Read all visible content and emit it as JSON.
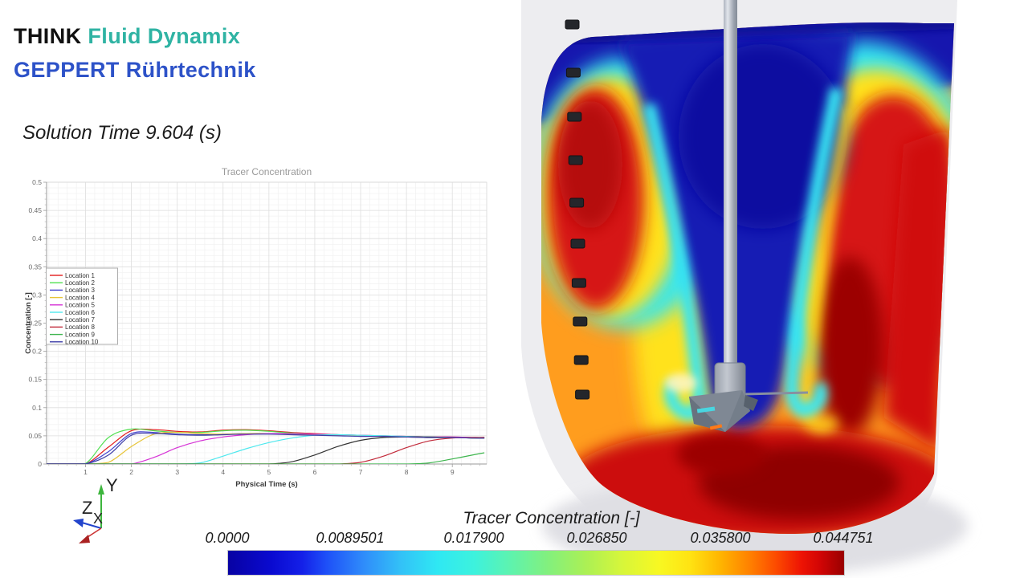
{
  "header": {
    "brand_primary": "THINK",
    "brand_secondary": "Fluid Dynamix",
    "brand_line2": "GEPPERT Rührtechnik",
    "solution_time": "Solution Time 9.604 (s)"
  },
  "scene": {
    "probe_count": 10,
    "triad": {
      "x": "X",
      "y": "Y",
      "z": "Z"
    }
  },
  "chart_data": {
    "type": "line",
    "title": "Tracer Concentration",
    "xlabel": "Physical Time (s)",
    "ylabel": "Concentration [-]",
    "xlim": [
      0.15,
      9.75
    ],
    "ylim": [
      0,
      0.5
    ],
    "x_ticks": [
      1,
      2,
      3,
      4,
      5,
      6,
      7,
      8,
      9
    ],
    "y_ticks": [
      0,
      0.05,
      0.1,
      0.15,
      0.2,
      0.25,
      0.3,
      0.35,
      0.4,
      0.45,
      0.5
    ],
    "grid": true,
    "legend_position": "left",
    "x": [
      0,
      0.5,
      1,
      1.5,
      2,
      2.5,
      3,
      3.5,
      4,
      4.5,
      5,
      5.5,
      6,
      6.5,
      7,
      7.5,
      8,
      8.5,
      9,
      9.5,
      9.7
    ],
    "series": [
      {
        "name": "Location 1",
        "color": "#e21b1b",
        "values": [
          0,
          0,
          0,
          0.03,
          0.059,
          0.061,
          0.058,
          0.057,
          0.06,
          0.061,
          0.059,
          0.056,
          0.054,
          0.052,
          0.051,
          0.05,
          0.049,
          0.048,
          0.048,
          0.047,
          0.047
        ]
      },
      {
        "name": "Location 2",
        "color": "#52e052",
        "values": [
          0,
          0,
          0.001,
          0.047,
          0.062,
          0.059,
          0.056,
          0.056,
          0.059,
          0.06,
          0.058,
          0.055,
          0.053,
          0.052,
          0.05,
          0.049,
          0.048,
          0.048,
          0.047,
          0.047,
          0.047
        ]
      },
      {
        "name": "Location 3",
        "color": "#4343cf",
        "values": [
          0,
          0,
          0,
          0.022,
          0.054,
          0.056,
          0.053,
          0.052,
          0.053,
          0.054,
          0.054,
          0.053,
          0.052,
          0.051,
          0.05,
          0.049,
          0.048,
          0.047,
          0.047,
          0.046,
          0.046
        ]
      },
      {
        "name": "Location 4",
        "color": "#e7c437",
        "values": [
          0,
          0,
          0,
          0.003,
          0.031,
          0.053,
          0.056,
          0.054,
          0.053,
          0.054,
          0.054,
          0.053,
          0.052,
          0.051,
          0.05,
          0.049,
          0.048,
          0.047,
          0.047,
          0.046,
          0.046
        ]
      },
      {
        "name": "Location 5",
        "color": "#d633d6",
        "values": [
          0,
          0,
          0,
          0,
          0,
          0.012,
          0.029,
          0.041,
          0.048,
          0.052,
          0.054,
          0.054,
          0.053,
          0.052,
          0.051,
          0.05,
          0.049,
          0.048,
          0.048,
          0.047,
          0.047
        ]
      },
      {
        "name": "Location 6",
        "color": "#4fe8ee",
        "values": [
          0,
          0,
          0,
          0,
          0,
          0,
          0,
          0.002,
          0.014,
          0.027,
          0.038,
          0.046,
          0.051,
          0.052,
          0.051,
          0.05,
          0.049,
          0.048,
          0.047,
          0.046,
          0.046
        ]
      },
      {
        "name": "Location 7",
        "color": "#333333",
        "values": [
          0,
          0,
          0,
          0,
          0,
          0,
          0,
          0,
          0,
          0,
          0,
          0.004,
          0.016,
          0.031,
          0.042,
          0.047,
          0.048,
          0.048,
          0.047,
          0.046,
          0.046
        ]
      },
      {
        "name": "Location 8",
        "color": "#c22a3a",
        "values": [
          0,
          0,
          0,
          0,
          0,
          0,
          0,
          0,
          0,
          0,
          0,
          0,
          0,
          0,
          0.003,
          0.014,
          0.029,
          0.041,
          0.046,
          0.047,
          0.047
        ]
      },
      {
        "name": "Location 9",
        "color": "#3eb54e",
        "values": [
          0,
          0,
          0,
          0,
          0,
          0,
          0,
          0,
          0,
          0,
          0,
          0,
          0,
          0,
          0,
          0,
          0,
          0.002,
          0.009,
          0.017,
          0.02
        ]
      },
      {
        "name": "Location 10",
        "color": "#3f3fa8",
        "values": [
          0,
          0,
          0,
          0.016,
          0.051,
          0.054,
          0.052,
          0.051,
          0.052,
          0.053,
          0.053,
          0.052,
          0.051,
          0.05,
          0.049,
          0.049,
          0.048,
          0.047,
          0.047,
          0.046,
          0.046
        ]
      }
    ]
  },
  "colorbar": {
    "title": "Tracer Concentration [-]",
    "ticks": [
      "0.0000",
      "0.0089501",
      "0.017900",
      "0.026850",
      "0.035800",
      "0.044751"
    ],
    "gradient": [
      [
        0.0,
        "#0802a3"
      ],
      [
        0.07,
        "#0a0ad0"
      ],
      [
        0.12,
        "#1420e8"
      ],
      [
        0.16,
        "#1e50f8"
      ],
      [
        0.22,
        "#2f8cfa"
      ],
      [
        0.28,
        "#33c1f7"
      ],
      [
        0.34,
        "#2fe8f3"
      ],
      [
        0.4,
        "#3df2dd"
      ],
      [
        0.46,
        "#5ff3ad"
      ],
      [
        0.52,
        "#83f07d"
      ],
      [
        0.58,
        "#abf055"
      ],
      [
        0.64,
        "#d7f63a"
      ],
      [
        0.7,
        "#f8f822"
      ],
      [
        0.75,
        "#ffe312"
      ],
      [
        0.8,
        "#ffb400"
      ],
      [
        0.85,
        "#ff7d00"
      ],
      [
        0.89,
        "#fc4a00"
      ],
      [
        0.93,
        "#ee1404"
      ],
      [
        0.96,
        "#d30505"
      ],
      [
        1.0,
        "#990000"
      ]
    ]
  }
}
